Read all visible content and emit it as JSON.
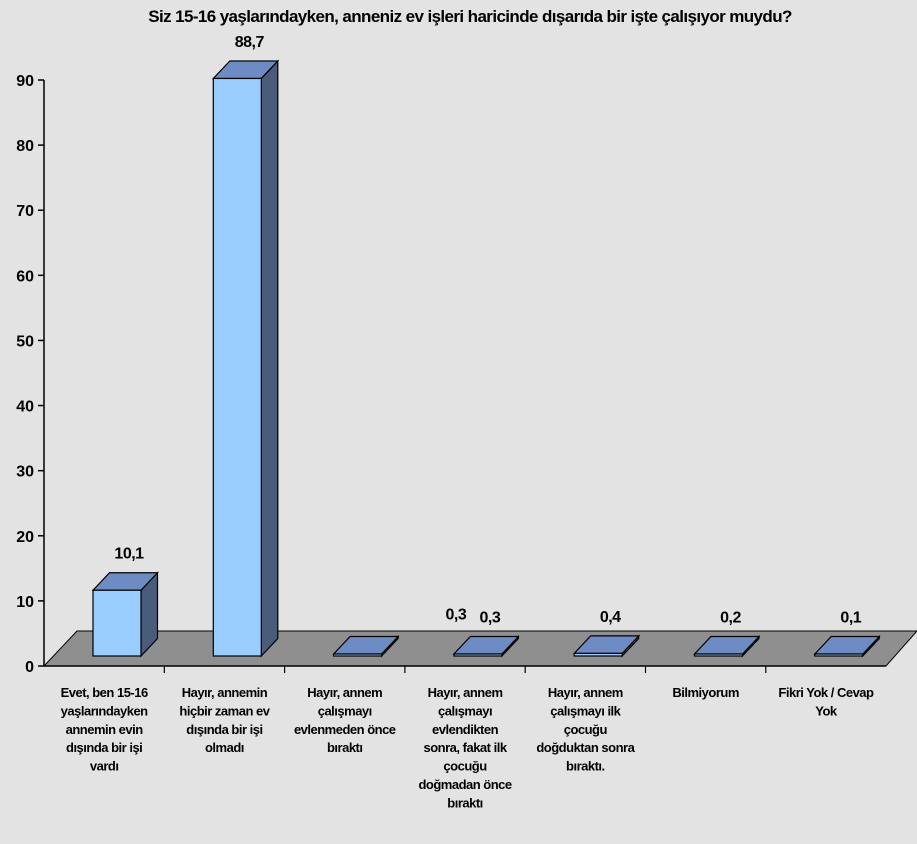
{
  "chart_data": {
    "type": "bar",
    "title": "Siz 15-16 yaşlarındayken, anneniz ev işleri haricinde dışarıda bir işte çalışıyor muydu?",
    "categories": [
      [
        "Evet, ben 15-16",
        "yaşlarındayken",
        "annemin evin",
        "dışında bir işi",
        "vardı"
      ],
      [
        "Hayır, annemin",
        "hiçbir zaman ev",
        "dışında bir işi",
        "olmadı"
      ],
      [
        "Hayır, annem",
        "çalışmayı",
        "evlenmeden önce",
        "bıraktı"
      ],
      [
        "Hayır, annem",
        "çalışmayı",
        "evlendikten",
        "sonra, fakat ilk",
        "çocuğu",
        "doğmadan önce",
        "bıraktı"
      ],
      [
        "Hayır, annem",
        "çalışmayı ilk",
        "çocuğu",
        "doğduktan sonra",
        "bıraktı."
      ],
      [
        "Bilmiyorum"
      ],
      [
        "Fikri Yok / Cevap",
        "Yok"
      ]
    ],
    "values": [
      10.1,
      88.7,
      0.3,
      0.3,
      0.4,
      0.2,
      0.1
    ],
    "value_labels": [
      "10,1",
      "88,7",
      "",
      "0,3",
      "0,4",
      "0,2",
      "0,1"
    ],
    "extra_label": "0,3",
    "yticks": [
      0,
      10,
      20,
      30,
      40,
      50,
      60,
      70,
      80,
      90
    ],
    "ylim": [
      0,
      90
    ],
    "xlabel": "",
    "ylabel": "",
    "grid": false,
    "legend": "none",
    "style": "3d-column",
    "colors": {
      "background": "#e3e3e3",
      "bar_front": "#99ccff",
      "bar_top": "#6d8cc4",
      "bar_side": "#4a5c7a",
      "floor": "#8f8f8f",
      "axis": "#000000"
    }
  }
}
